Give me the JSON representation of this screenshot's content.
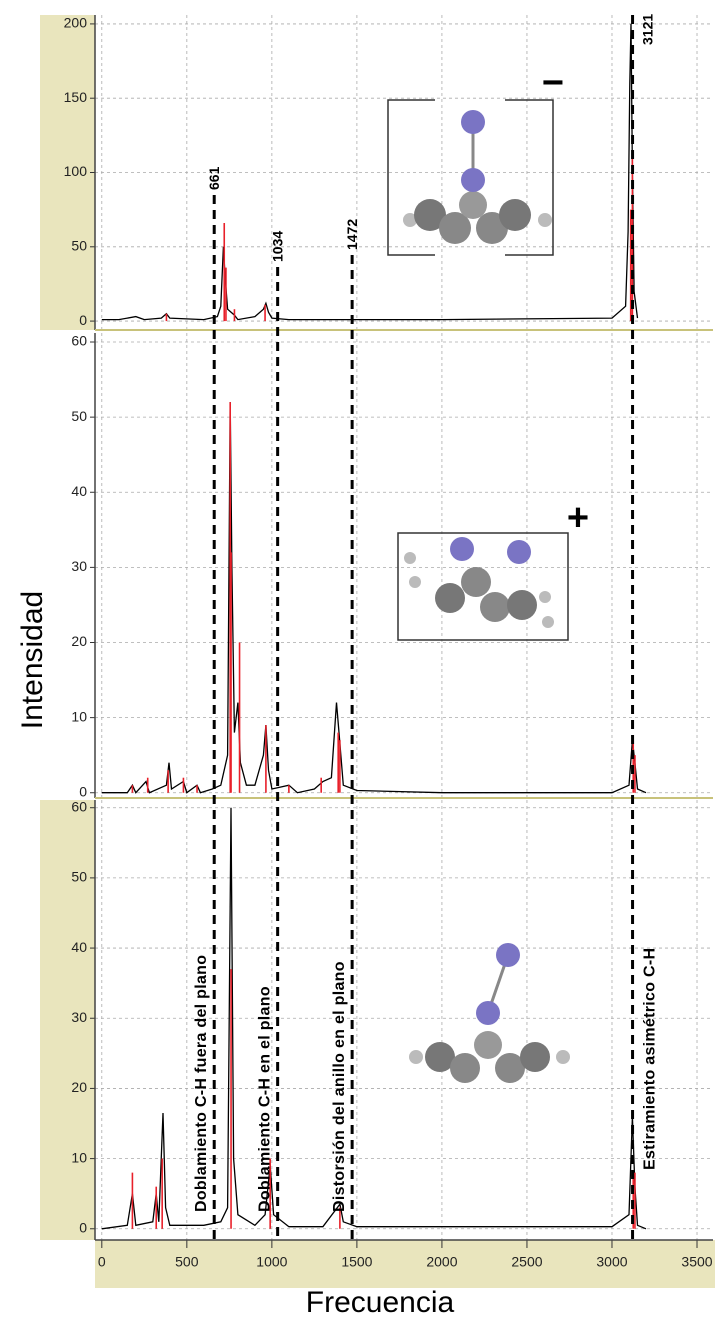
{
  "chart_data": [
    {
      "type": "spectrum",
      "charge": "−",
      "xlim": [
        -40,
        3594
      ],
      "ylim": [
        -6,
        206
      ],
      "yticks": [
        0,
        50,
        100,
        150,
        200
      ],
      "grid": true,
      "markers": [
        661,
        1034,
        1472,
        3121
      ],
      "series": [
        {
          "style": "line",
          "color": "#000000",
          "x": [
            0,
            100,
            200,
            250,
            350,
            380,
            400,
            600,
            680,
            700,
            715,
            725,
            740,
            780,
            800,
            900,
            950,
            965,
            980,
            1000,
            1100,
            2000,
            3000,
            3080,
            3095,
            3105,
            3112,
            3120,
            3130,
            3150
          ],
          "values": [
            1,
            1,
            3,
            1,
            2,
            5,
            2,
            1,
            3,
            10,
            50,
            30,
            8,
            4,
            1,
            3,
            8,
            12,
            6,
            2,
            1,
            1,
            2,
            10,
            60,
            160,
            200,
            100,
            20,
            2
          ]
        },
        {
          "style": "stick",
          "color": "#e8202a",
          "x": [
            380,
            720,
            730,
            780,
            960,
            3110,
            3120
          ],
          "values": [
            5,
            66,
            36,
            8,
            11,
            75,
            115
          ]
        }
      ]
    },
    {
      "type": "spectrum",
      "charge": "+",
      "ylabel": "Intensidad",
      "xlim": [
        -40,
        3594
      ],
      "ylim": [
        -0.7,
        61.2
      ],
      "yticks": [
        0,
        10,
        20,
        30,
        40,
        50,
        60
      ],
      "grid": true,
      "series": [
        {
          "style": "line",
          "color": "#000000",
          "x": [
            0,
            150,
            180,
            200,
            260,
            280,
            380,
            395,
            410,
            480,
            500,
            560,
            580,
            650,
            700,
            740,
            755,
            765,
            780,
            800,
            815,
            850,
            900,
            950,
            965,
            980,
            1000,
            1100,
            1150,
            1250,
            1300,
            1350,
            1380,
            1395,
            1420,
            1500,
            2000,
            3000,
            3100,
            3120,
            3135,
            3150,
            3200
          ],
          "values": [
            0,
            0,
            1,
            0,
            1.5,
            0,
            1,
            4,
            0.5,
            1.5,
            0,
            1,
            0,
            0.5,
            1,
            5,
            52,
            30,
            8,
            12,
            4,
            1,
            1,
            5,
            9,
            3,
            0.5,
            1,
            0,
            0.5,
            1.5,
            2,
            12,
            8,
            1,
            0.3,
            0,
            0,
            1,
            7,
            4,
            0.5,
            0
          ]
        },
        {
          "style": "stick",
          "color": "#e8202a",
          "x": [
            180,
            270,
            390,
            480,
            560,
            755,
            760,
            810,
            965,
            1100,
            1290,
            1390,
            1400,
            3125,
            3135
          ],
          "values": [
            1,
            2,
            3,
            2,
            1,
            52,
            32,
            20,
            9,
            1,
            2,
            8,
            7,
            7,
            5
          ]
        }
      ]
    },
    {
      "type": "spectrum",
      "xlabel": "Frecuencia",
      "xlim": [
        -40,
        3594
      ],
      "ylim": [
        -1.6,
        61.1
      ],
      "yticks": [
        0,
        10,
        20,
        30,
        40,
        50,
        60
      ],
      "grid": true,
      "xticks": [
        0,
        500,
        1000,
        1500,
        2000,
        2500,
        3000,
        3500
      ],
      "band_labels": [
        "Doblamiento C-H fuera del plano",
        "Doblamiento C-H en el plano",
        "Distorsión del anillo en el plano",
        "Estiramiento asimétrico C-H"
      ],
      "series": [
        {
          "style": "line",
          "color": "#000000",
          "x": [
            0,
            150,
            180,
            200,
            300,
            320,
            335,
            360,
            375,
            400,
            600,
            700,
            740,
            760,
            775,
            800,
            900,
            960,
            990,
            1010,
            1100,
            1300,
            1400,
            1420,
            1500,
            2500,
            3000,
            3100,
            3120,
            3135,
            3150,
            3200
          ],
          "values": [
            0,
            0.5,
            5,
            0.5,
            1,
            5,
            1,
            16.5,
            3,
            0.5,
            0.5,
            1,
            3,
            60,
            10,
            2,
            0.5,
            2,
            9,
            2,
            0.3,
            0.3,
            3.5,
            1,
            0.3,
            0.3,
            0.3,
            2,
            16,
            6,
            0.5,
            0
          ]
        },
        {
          "style": "stick",
          "color": "#e8202a",
          "x": [
            180,
            320,
            355,
            760,
            990,
            1400,
            3125,
            3135
          ],
          "values": [
            8,
            6,
            10,
            37,
            10,
            3,
            8,
            8
          ]
        }
      ]
    }
  ]
}
